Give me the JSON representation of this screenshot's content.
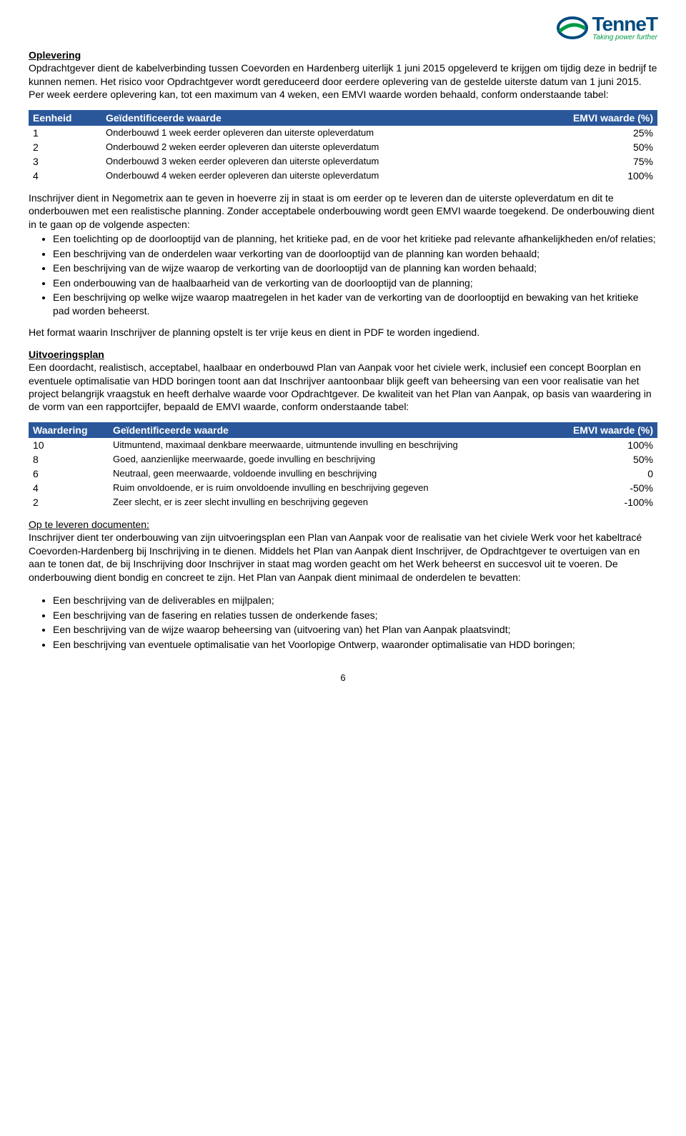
{
  "logo": {
    "brand": "TenneT",
    "tagline": "Taking power further"
  },
  "oplevering": {
    "title": "Oplevering",
    "p1": "Opdrachtgever dient de kabelverbinding tussen Coevorden en Hardenberg uiterlijk 1 juni 2015 opgeleverd te krijgen om tijdig deze in bedrijf te kunnen nemen. Het risico voor Opdrachtgever wordt gereduceerd door eerdere oplevering van de gestelde uiterste datum van 1 juni 2015. Per week eerdere oplevering kan, tot een maximum van 4 weken, een EMVI waarde worden behaald, conform onderstaande tabel:"
  },
  "table1": {
    "headers": [
      "Eenheid",
      "Geïdentificeerde waarde",
      "EMVI waarde (%)"
    ],
    "rows": [
      [
        "1",
        "Onderbouwd 1 week eerder opleveren dan uiterste opleverdatum",
        "25%"
      ],
      [
        "2",
        "Onderbouwd 2 weken eerder opleveren dan uiterste opleverdatum",
        "50%"
      ],
      [
        "3",
        "Onderbouwd 3 weken eerder opleveren dan uiterste opleverdatum",
        "75%"
      ],
      [
        "4",
        "Onderbouwd 4 weken eerder opleveren dan uiterste opleverdatum",
        "100%"
      ]
    ]
  },
  "middle": {
    "p1": "Inschrijver dient in Negometrix aan te geven in hoeverre zij in staat is om eerder op te leveren dan de uiterste opleverdatum en dit te onderbouwen met een realistische planning. Zonder acceptabele onderbouwing wordt geen EMVI waarde toegekend. De onderbouwing dient in te gaan op de volgende aspecten:",
    "bullets": [
      "Een toelichting op de doorlooptijd van de planning, het kritieke pad, en de voor het kritieke pad relevante afhankelijkheden en/of relaties;",
      "Een beschrijving van de onderdelen waar verkorting van de doorlooptijd van de planning kan worden behaald;",
      "Een beschrijving van de wijze waarop de verkorting van de doorlooptijd van de planning kan worden behaald;",
      "Een onderbouwing van de haalbaarheid van de verkorting  van de doorlooptijd van de planning;",
      "Een beschrijving op welke wijze waarop maatregelen in het kader van de verkorting van de doorlooptijd en bewaking van het kritieke pad worden beheerst."
    ],
    "p2": "Het format waarin Inschrijver de planning opstelt is ter vrije keus en dient in PDF te worden ingediend."
  },
  "uitvoeringsplan": {
    "title": "Uitvoeringsplan",
    "p1": "Een doordacht, realistisch, acceptabel, haalbaar en onderbouwd Plan van Aanpak voor het civiele werk, inclusief een concept Boorplan en eventuele optimalisatie van HDD boringen toont aan dat Inschrijver aantoonbaar blijk geeft van beheersing van een voor realisatie van het project belangrijk vraagstuk en heeft derhalve waarde voor Opdrachtgever. De kwaliteit van het Plan van Aanpak, op basis van waardering in de vorm van een rapportcijfer, bepaald de EMVI waarde, conform onderstaande tabel:"
  },
  "table2": {
    "headers": [
      "Waardering",
      "Geïdentificeerde waarde",
      "EMVI waarde (%)"
    ],
    "rows": [
      [
        "10",
        "Uitmuntend, maximaal denkbare meerwaarde, uitmuntende invulling en beschrijving",
        "100%"
      ],
      [
        "8",
        "Goed, aanzienlijke meerwaarde, goede invulling en beschrijving",
        "50%"
      ],
      [
        "6",
        "Neutraal, geen meerwaarde, voldoende invulling en beschrijving",
        "0"
      ],
      [
        "4",
        "Ruim onvoldoende, er is ruim onvoldoende invulling en beschrijving gegeven",
        "-50%"
      ],
      [
        "2",
        "Zeer slecht, er is zeer slecht invulling en beschrijving gegeven",
        "-100%"
      ]
    ]
  },
  "docs": {
    "title": "Op te leveren documenten:",
    "p1": "Inschrijver dient ter onderbouwing van zijn uitvoeringsplan een Plan van Aanpak voor de realisatie van het civiele Werk voor het kabeltracé Coevorden-Hardenberg bij Inschrijving in te dienen. Middels het Plan van Aanpak dient Inschrijver, de Opdrachtgever te overtuigen van en aan te tonen dat, de bij Inschrijving door Inschrijver in staat mag worden geacht om het Werk beheerst en succesvol uit te voeren. De onderbouwing dient bondig en concreet te zijn. Het Plan van Aanpak dient minimaal de onderdelen te bevatten:",
    "bullets": [
      "Een beschrijving van de deliverables en mijlpalen;",
      "Een beschrijving van de fasering en relaties tussen de onderkende fases;",
      "Een beschrijving van de wijze waarop beheersing van (uitvoering van) het Plan van Aanpak plaatsvindt;",
      "Een beschrijving van eventuele optimalisatie van het Voorlopige Ontwerp, waaronder optimalisatie van HDD boringen;"
    ]
  },
  "page_number": "6",
  "colors": {
    "table_header_bg": "#2a579a",
    "table_header_fg": "#ffffff",
    "logo_blue": "#004a7f",
    "logo_green": "#009a44"
  }
}
